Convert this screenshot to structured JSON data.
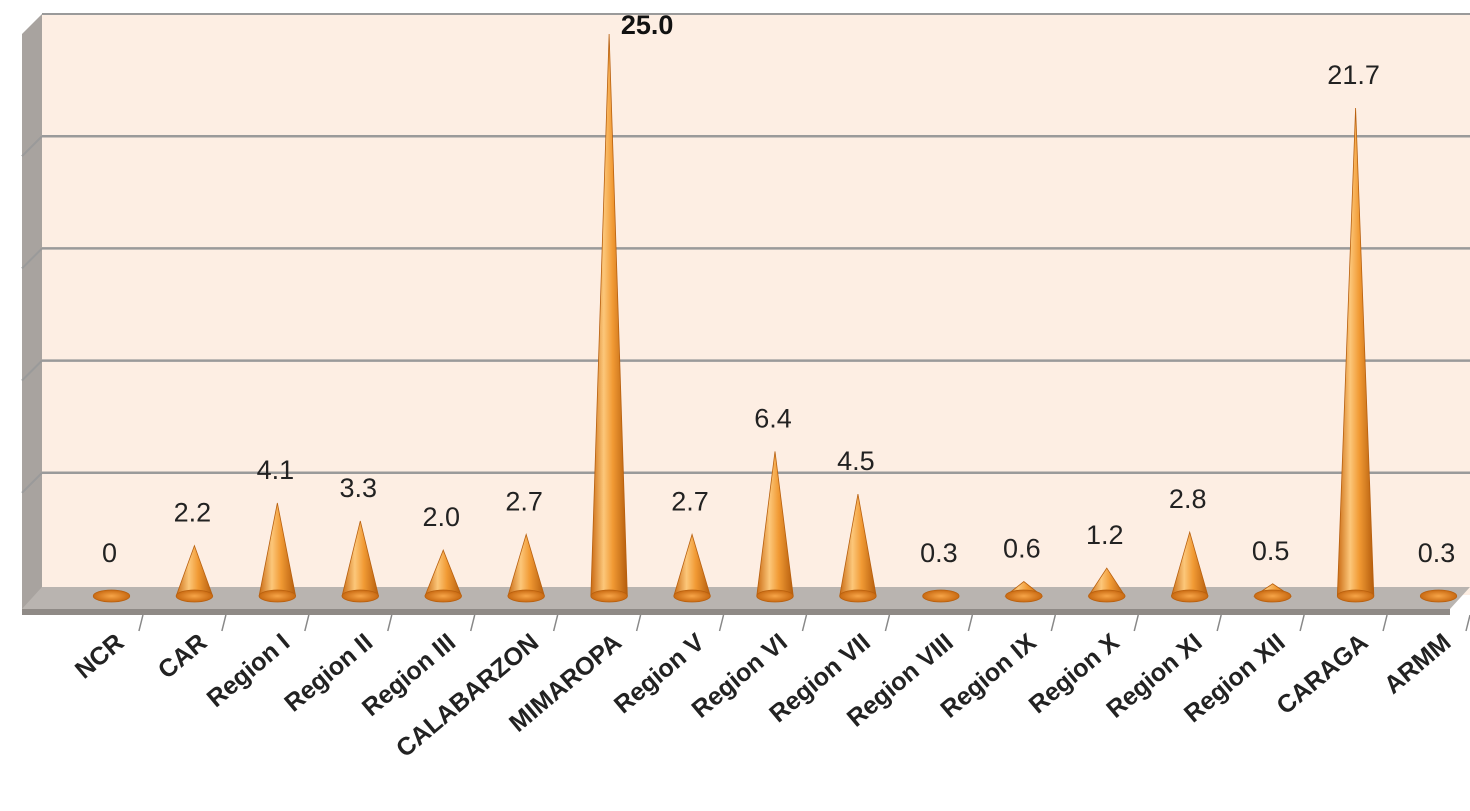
{
  "chart_data": {
    "type": "bar",
    "shape": "cone",
    "title": "",
    "xlabel": "",
    "ylabel": "",
    "categories": [
      "NCR",
      "CAR",
      "Region I",
      "Region II",
      "Region III",
      "CALABARZON",
      "MIMAROPA",
      "Region V",
      "Region VI",
      "Region VII",
      "Region VIII",
      "Region IX",
      "Region X",
      "Region XI",
      "Region XII",
      "CARAGA",
      "ARMM"
    ],
    "values": [
      0,
      2.2,
      4.1,
      3.3,
      2.0,
      2.7,
      25.0,
      2.7,
      6.4,
      4.5,
      0.3,
      0.6,
      1.2,
      2.8,
      0.5,
      21.7,
      0.3
    ],
    "value_labels": [
      "0",
      "2.2",
      "4.1",
      "3.3",
      "2.0",
      "2.7",
      "25.0",
      "2.7",
      "6.4",
      "4.5",
      "0.3",
      "0.6",
      "1.2",
      "2.8",
      "0.5",
      "21.7",
      "0.3"
    ],
    "highlight_index": 6,
    "ylim": [
      0,
      25
    ],
    "gridlines": 5,
    "grid": true,
    "legend": "none",
    "colors": {
      "plot_background": "#fdeee3",
      "floor": "#b9b4b0",
      "wall_side": "#a8a39f",
      "gridline": "#9a9a9a",
      "bar_light": "#fcc77a",
      "bar_mid": "#f19a34",
      "bar_dark": "#c96a12"
    }
  }
}
